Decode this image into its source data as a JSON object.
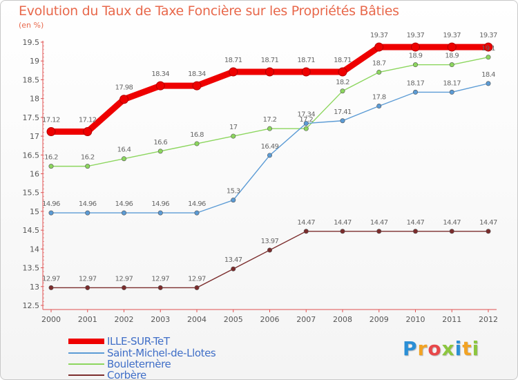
{
  "title": "Evolution du Taux de Taxe Foncière sur les Propriétés Bâties",
  "unit_label": "(en %)",
  "logo": {
    "letters": [
      "P",
      "r",
      "o",
      "x",
      "i",
      "t",
      "i"
    ],
    "colors": [
      "#2b8fd6",
      "#f2a324",
      "#e8484a",
      "#8cc63f",
      "#2b8fd6",
      "#f2a324",
      "#8cc63f"
    ]
  },
  "chart_data": {
    "type": "line",
    "x": [
      "2000",
      "2001",
      "2002",
      "2003",
      "2004",
      "2005",
      "2006",
      "2007",
      "2008",
      "2009",
      "2010",
      "2011",
      "2012"
    ],
    "ylim": [
      12.5,
      19.5
    ],
    "yticks": [
      "12.5",
      "13",
      "13.5",
      "14",
      "14.5",
      "15",
      "15.5",
      "16",
      "16.5",
      "17",
      "17.5",
      "18",
      "18.5",
      "19",
      "19.5"
    ],
    "grid": false,
    "legend_position": "bottom-left",
    "series": [
      {
        "name": "ILLE-SUR-TeT",
        "color": "#ee0000",
        "values": [
          17.12,
          17.12,
          17.98,
          18.34,
          18.34,
          18.71,
          18.71,
          18.71,
          18.71,
          19.37,
          19.37,
          19.37,
          19.37
        ],
        "labels": [
          "17.12",
          "17.12",
          "17.98",
          "18.34",
          "18.34",
          "18.71",
          "18.71",
          "18.71",
          "18.71",
          "19.37",
          "19.37",
          "19.37",
          "19.37"
        ]
      },
      {
        "name": "Saint-Michel-de-Llotes",
        "color": "#5b9bd5",
        "values": [
          14.96,
          14.96,
          14.96,
          14.96,
          14.96,
          15.3,
          16.49,
          17.34,
          17.41,
          17.8,
          18.17,
          18.17,
          18.4
        ],
        "labels": [
          "14.96",
          "14.96",
          "14.96",
          "14.96",
          "14.96",
          "15.3",
          "16.49",
          "17.34",
          "17.41",
          "17.8",
          "18.17",
          "18.17",
          "18.4"
        ]
      },
      {
        "name": "Bouleternère",
        "color": "#8cd65e",
        "values": [
          16.2,
          16.2,
          16.4,
          16.6,
          16.8,
          17,
          17.2,
          17.2,
          18.2,
          18.7,
          18.9,
          18.9,
          19.1
        ],
        "labels": [
          "16.2",
          "16.2",
          "16.4",
          "16.6",
          "16.8",
          "17",
          "17.2",
          "17.2",
          "18.2",
          "18.7",
          "18.9",
          "18.9",
          "19.1"
        ]
      },
      {
        "name": "Corbère",
        "color": "#7b2c2c",
        "values": [
          12.97,
          12.97,
          12.97,
          12.97,
          12.97,
          13.47,
          13.97,
          14.47,
          14.47,
          14.47,
          14.47,
          14.47,
          14.47
        ],
        "labels": [
          "12.97",
          "12.97",
          "12.97",
          "12.97",
          "12.97",
          "13.47",
          "13.97",
          "14.47",
          "14.47",
          "14.47",
          "14.47",
          "14.47",
          "14.47"
        ]
      }
    ]
  }
}
